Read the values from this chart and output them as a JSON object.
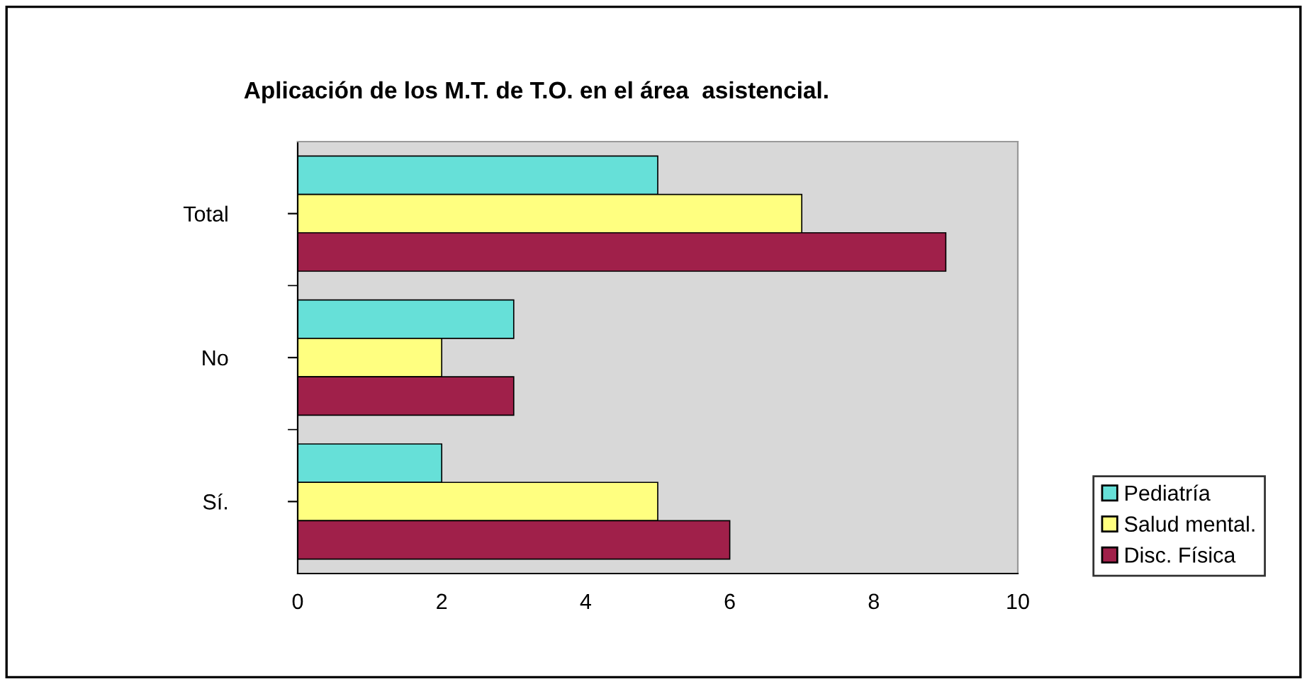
{
  "chart_data": {
    "type": "bar",
    "orientation": "horizontal",
    "title": "Aplicación de los M.T. de T.O. en el área  asistencial.",
    "categories": [
      "Total",
      "No",
      "Sí."
    ],
    "series": [
      {
        "name": "Pediatría",
        "color": "#66e0d8",
        "values": [
          5,
          3,
          2
        ]
      },
      {
        "name": "Salud mental.",
        "color": "#ffff80",
        "values": [
          7,
          2,
          5
        ]
      },
      {
        "name": "Disc. Física",
        "color": "#a0204a",
        "values": [
          9,
          3,
          6
        ]
      }
    ],
    "xlim": [
      0,
      10
    ],
    "xticks": [
      0,
      2,
      4,
      6,
      8,
      10
    ],
    "grid": false,
    "legend": "bottom right"
  }
}
